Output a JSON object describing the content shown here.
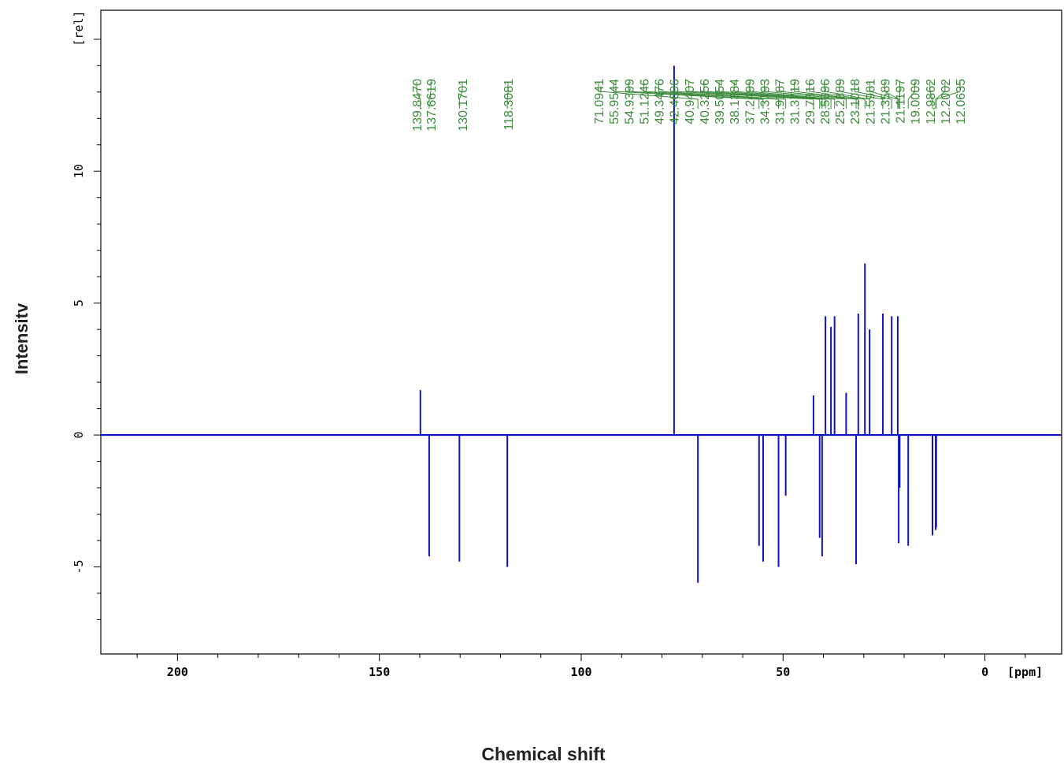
{
  "chart_data": {
    "type": "line",
    "title": "",
    "xlabel": "Chemical shift",
    "ylabel": "Intensitv",
    "x_unit": "[ppm]",
    "y_unit": "[rel]",
    "xlim": [
      219,
      -19
    ],
    "ylim": [
      -8.3,
      16.1
    ],
    "x_reversed": true,
    "x_ticks": [
      "200",
      "150",
      "100",
      "50",
      "0"
    ],
    "y_ticks": [
      "10",
      "5",
      "0",
      "-5"
    ],
    "grid": false,
    "series": [
      {
        "color": "#1010c8",
        "peaks": [
          {
            "ppm": 139.847,
            "intensity": 1.7
          },
          {
            "ppm": 137.662,
            "intensity": -4.6
          },
          {
            "ppm": 130.17,
            "intensity": -4.8
          },
          {
            "ppm": 118.308,
            "intensity": -5.0
          },
          {
            "ppm": 77.0,
            "intensity": 14.0
          },
          {
            "ppm": 71.094,
            "intensity": -5.6
          },
          {
            "ppm": 55.954,
            "intensity": -4.2
          },
          {
            "ppm": 54.94,
            "intensity": -4.8
          },
          {
            "ppm": 51.125,
            "intensity": -5.0
          },
          {
            "ppm": 49.348,
            "intensity": -2.3
          },
          {
            "ppm": 42.47,
            "intensity": 1.5
          },
          {
            "ppm": 40.941,
            "intensity": -3.9
          },
          {
            "ppm": 40.326,
            "intensity": -4.6
          },
          {
            "ppm": 39.505,
            "intensity": 4.5
          },
          {
            "ppm": 38.138,
            "intensity": 4.1
          },
          {
            "ppm": 37.25,
            "intensity": 4.5
          },
          {
            "ppm": 34.379,
            "intensity": 1.6
          },
          {
            "ppm": 31.919,
            "intensity": -4.9
          },
          {
            "ppm": 31.372,
            "intensity": 4.6
          },
          {
            "ppm": 29.732,
            "intensity": 6.5
          },
          {
            "ppm": 28.57,
            "intensity": 4.0
          },
          {
            "ppm": 25.289,
            "intensity": 4.6
          },
          {
            "ppm": 23.102,
            "intensity": 4.5
          },
          {
            "ppm": 21.598,
            "intensity": 4.5
          },
          {
            "ppm": 21.359,
            "intensity": -4.1
          },
          {
            "ppm": 21.12,
            "intensity": -2.0
          },
          {
            "ppm": 19.001,
            "intensity": -4.2
          },
          {
            "ppm": 12.986,
            "intensity": -3.8
          },
          {
            "ppm": 12.2,
            "intensity": -3.6
          },
          {
            "ppm": 12.064,
            "intensity": -3.5
          }
        ]
      }
    ],
    "peak_labels": [
      {
        "text": "139.8470",
        "ppm": 139.847
      },
      {
        "text": "137.6619",
        "ppm": 137.662
      },
      {
        "text": "130.1701",
        "ppm": 130.17
      },
      {
        "text": "118.3081",
        "ppm": 118.308
      },
      {
        "text": "71.0941",
        "ppm": 71.094
      },
      {
        "text": "55.9544",
        "ppm": 55.954
      },
      {
        "text": "54.9399",
        "ppm": 54.94
      },
      {
        "text": "51.1246",
        "ppm": 51.125
      },
      {
        "text": "49.3476",
        "ppm": 49.348
      },
      {
        "text": "42.4696",
        "ppm": 42.47
      },
      {
        "text": "40.9407",
        "ppm": 40.941
      },
      {
        "text": "40.3256",
        "ppm": 40.326
      },
      {
        "text": "39.5054",
        "ppm": 39.505
      },
      {
        "text": "38.1384",
        "ppm": 38.138
      },
      {
        "text": "37.2499",
        "ppm": 37.25
      },
      {
        "text": "34.3793",
        "ppm": 34.379
      },
      {
        "text": "31.9187",
        "ppm": 31.919
      },
      {
        "text": "31.3719",
        "ppm": 31.372
      },
      {
        "text": "29.7316",
        "ppm": 29.732
      },
      {
        "text": "28.5696",
        "ppm": 28.57
      },
      {
        "text": "25.2889",
        "ppm": 25.289
      },
      {
        "text": "23.1018",
        "ppm": 23.102
      },
      {
        "text": "21.5981",
        "ppm": 21.598
      },
      {
        "text": "21.3589",
        "ppm": 21.359
      },
      {
        "text": "21.1197",
        "ppm": 21.12
      },
      {
        "text": "19.0009",
        "ppm": 19.001
      },
      {
        "text": "12.9862",
        "ppm": 12.986
      },
      {
        "text": "12.2002",
        "ppm": 12.2
      },
      {
        "text": "12.0635",
        "ppm": 12.064
      }
    ],
    "colors": {
      "spectrum": "#1010c8",
      "labels": "#3c8a3c",
      "axes": "#000000"
    }
  }
}
